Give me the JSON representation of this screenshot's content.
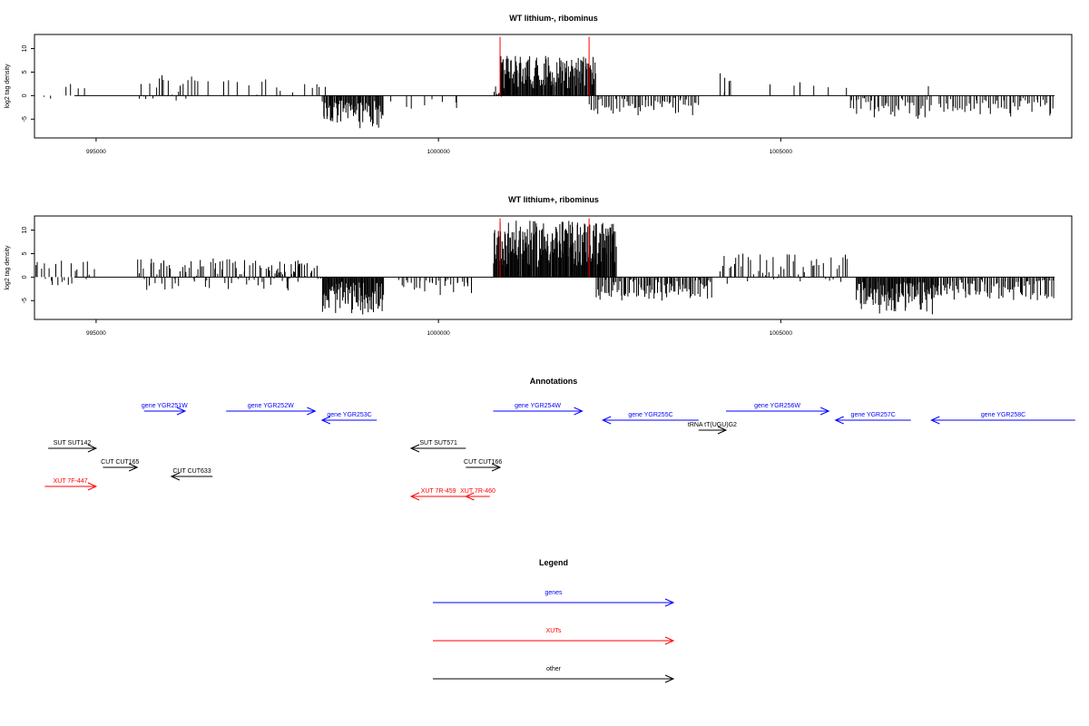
{
  "chart_data": [
    {
      "type": "bar",
      "title": "WT lithium-, ribominus",
      "ylabel": "log2 tag density",
      "xlim": [
        994100,
        1009250
      ],
      "ylim": [
        -9,
        13
      ],
      "x_ticks": [
        995000,
        1000000,
        1005000
      ],
      "y_ticks": [
        -5,
        0,
        5,
        10
      ],
      "marker_lines": [
        1000900,
        1002200
      ],
      "marker_color": "#ff0000",
      "region_counts": [
        {
          "start": 994100,
          "end": 994400,
          "n": 2,
          "min": -2,
          "max": 1
        },
        {
          "start": 994500,
          "end": 994900,
          "n": 4,
          "min": 0.5,
          "max": 2.5
        },
        {
          "start": 995600,
          "end": 996500,
          "n": 22,
          "min": -2,
          "max": 4.5
        },
        {
          "start": 996600,
          "end": 997900,
          "n": 12,
          "min": -0.5,
          "max": 3.5
        },
        {
          "start": 998000,
          "end": 998400,
          "n": 5,
          "min": 0.5,
          "max": 2.5
        },
        {
          "start": 998300,
          "end": 999200,
          "n": 70,
          "min": -7,
          "max": -1
        },
        {
          "start": 999300,
          "end": 1000400,
          "n": 8,
          "min": -3,
          "max": -0.5
        },
        {
          "start": 1000800,
          "end": 1001000,
          "n": 10,
          "min": -1,
          "max": 2.5
        },
        {
          "start": 1000900,
          "end": 1002300,
          "n": 130,
          "min": 1.5,
          "max": 8.5
        },
        {
          "start": 1002200,
          "end": 1003800,
          "n": 60,
          "min": -4.5,
          "max": -0.5
        },
        {
          "start": 1004100,
          "end": 1004300,
          "n": 5,
          "min": 0.5,
          "max": 5
        },
        {
          "start": 1004800,
          "end": 1006000,
          "n": 6,
          "min": 0.5,
          "max": 3
        },
        {
          "start": 1006000,
          "end": 1007200,
          "n": 45,
          "min": -5,
          "max": -0.5
        },
        {
          "start": 1007100,
          "end": 1007200,
          "n": 1,
          "min": 2,
          "max": 2
        },
        {
          "start": 1007300,
          "end": 1009000,
          "n": 55,
          "min": -4.5,
          "max": -0.5
        }
      ]
    },
    {
      "type": "bar",
      "title": "WT lithium+, ribominus",
      "ylabel": "log2 tag density",
      "xlim": [
        994100,
        1009250
      ],
      "ylim": [
        -9,
        13
      ],
      "x_ticks": [
        995000,
        1000000,
        1005000
      ],
      "y_ticks": [
        -5,
        0,
        5,
        10
      ],
      "marker_lines": [
        1000900,
        1002200
      ],
      "marker_color": "#ff0000",
      "region_counts": [
        {
          "start": 994100,
          "end": 995000,
          "n": 25,
          "min": -2,
          "max": 3.5
        },
        {
          "start": 995600,
          "end": 998000,
          "n": 95,
          "min": -3,
          "max": 4
        },
        {
          "start": 997500,
          "end": 998300,
          "n": 25,
          "min": -1,
          "max": 3
        },
        {
          "start": 998300,
          "end": 999200,
          "n": 90,
          "min": -8,
          "max": -1
        },
        {
          "start": 999400,
          "end": 1000500,
          "n": 30,
          "min": -4,
          "max": -0.5
        },
        {
          "start": 1000800,
          "end": 1002600,
          "n": 190,
          "min": 2,
          "max": 12
        },
        {
          "start": 1002300,
          "end": 1004000,
          "n": 90,
          "min": -5,
          "max": -0.5
        },
        {
          "start": 1004100,
          "end": 1006000,
          "n": 55,
          "min": -1.5,
          "max": 5
        },
        {
          "start": 1006100,
          "end": 1007300,
          "n": 110,
          "min": -8,
          "max": -1
        },
        {
          "start": 1007300,
          "end": 1009000,
          "n": 90,
          "min": -5,
          "max": -0.5
        }
      ]
    }
  ],
  "annotations": {
    "title": "Annotations",
    "xlim": [
      994100,
      1009250
    ],
    "items": [
      {
        "label": "gene YGR251W",
        "start": 995700,
        "end": 996300,
        "strand": "+",
        "row": 0,
        "color": "#0000ff"
      },
      {
        "label": "gene YGR252W",
        "start": 996900,
        "end": 998200,
        "strand": "+",
        "row": 0,
        "color": "#0000ff"
      },
      {
        "label": "gene YGR253C",
        "start": 998300,
        "end": 999100,
        "strand": "-",
        "row": 1,
        "color": "#0000ff"
      },
      {
        "label": "gene YGR254W",
        "start": 1000800,
        "end": 1002100,
        "strand": "+",
        "row": 0,
        "color": "#0000ff"
      },
      {
        "label": "gene YGR255C",
        "start": 1002400,
        "end": 1003800,
        "strand": "-",
        "row": 1,
        "color": "#0000ff"
      },
      {
        "label": "tRNA tT(UGU)G2",
        "start": 1003800,
        "end": 1004200,
        "strand": "+",
        "row": 2,
        "color": "#000000"
      },
      {
        "label": "gene YGR256W",
        "start": 1004200,
        "end": 1005700,
        "strand": "+",
        "row": 0,
        "color": "#0000ff"
      },
      {
        "label": "gene YGR257C",
        "start": 1005800,
        "end": 1006900,
        "strand": "-",
        "row": 1,
        "color": "#0000ff"
      },
      {
        "label": "gene YGR258C",
        "start": 1007200,
        "end": 1009300,
        "strand": "-",
        "row": 1,
        "color": "#0000ff"
      },
      {
        "label": "SUT SUT142",
        "start": 994300,
        "end": 995000,
        "strand": "+",
        "row": 4,
        "color": "#000000"
      },
      {
        "label": "CUT CUT165",
        "start": 995100,
        "end": 995600,
        "strand": "+",
        "row": 5,
        "color": "#000000"
      },
      {
        "label": "CUT CUT633",
        "start": 996100,
        "end": 996700,
        "strand": "-",
        "row": 6,
        "color": "#000000"
      },
      {
        "label": "XUT 7F-447",
        "start": 994250,
        "end": 995000,
        "strand": "+",
        "row": 7,
        "color": "#ff0000"
      },
      {
        "label": "SUT SUT571",
        "start": 999600,
        "end": 1000400,
        "strand": "-",
        "row": 4,
        "color": "#000000"
      },
      {
        "label": "CUT CUT166",
        "start": 1000400,
        "end": 1000900,
        "strand": "+",
        "row": 5,
        "color": "#000000"
      },
      {
        "label": "XUT 7R-459",
        "start": 999600,
        "end": 1000400,
        "strand": "-",
        "row": 8,
        "color": "#ff0000"
      },
      {
        "label": "XUT 7R-460",
        "start": 1000400,
        "end": 1000750,
        "strand": "-",
        "row": 8,
        "color": "#ff0000"
      }
    ]
  },
  "legend": {
    "title": "Legend",
    "items": [
      {
        "label": "genes",
        "color": "#0000ff"
      },
      {
        "label": "XUTs",
        "color": "#ff0000"
      },
      {
        "label": "other",
        "color": "#000000"
      }
    ]
  }
}
